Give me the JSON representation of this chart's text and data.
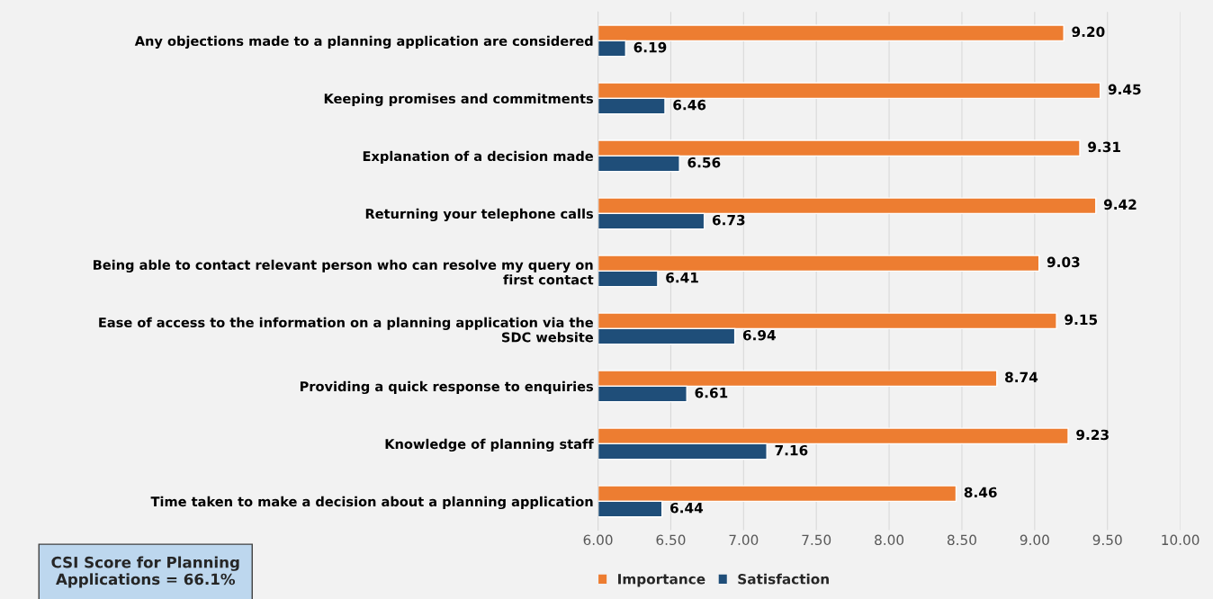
{
  "chart_data": {
    "type": "bar",
    "orientation": "horizontal",
    "categories": [
      "Any objections made to a planning application are considered",
      "Keeping promises and commitments",
      "Explanation of a decision made",
      "Returning your telephone calls",
      "Being able to contact relevant person who can resolve my query on first contact",
      "Ease of access to the information on a planning application via the SDC website",
      "Providing a quick response to enquiries",
      "Knowledge of planning staff",
      "Time taken to make a decision about a planning application"
    ],
    "series": [
      {
        "name": "Importance",
        "color": "#ed7d31",
        "values": [
          9.2,
          9.45,
          9.31,
          9.42,
          9.03,
          9.15,
          8.74,
          9.23,
          8.46
        ],
        "value_labels": [
          "9.20",
          "9.45",
          "9.31",
          "9.42",
          "9.03",
          "9.15",
          "8.74",
          "9.23",
          "8.46"
        ]
      },
      {
        "name": "Satisfaction",
        "color": "#1f4e79",
        "values": [
          6.19,
          6.46,
          6.56,
          6.73,
          6.41,
          6.94,
          6.61,
          7.16,
          6.44
        ],
        "value_labels": [
          "6.19",
          "6.46",
          "6.56",
          "6.73",
          "6.41",
          "6.94",
          "6.61",
          "7.16",
          "6.44"
        ]
      }
    ],
    "xlim": [
      6,
      10
    ],
    "xticks": [
      {
        "value": 6,
        "label": "6.00"
      },
      {
        "value": 6.5,
        "label": "6.50"
      },
      {
        "value": 7,
        "label": "7.00"
      },
      {
        "value": 7.5,
        "label": "7.50"
      },
      {
        "value": 8,
        "label": "8.00"
      },
      {
        "value": 8.5,
        "label": "8.50"
      },
      {
        "value": 9,
        "label": "9.00"
      },
      {
        "value": 9.5,
        "label": "9.50"
      },
      {
        "value": 10,
        "label": "10.00"
      }
    ],
    "grid": "x",
    "legend": "bottom",
    "annotations": [
      "CSI Score for Planning\nApplications = 66.1%"
    ]
  }
}
